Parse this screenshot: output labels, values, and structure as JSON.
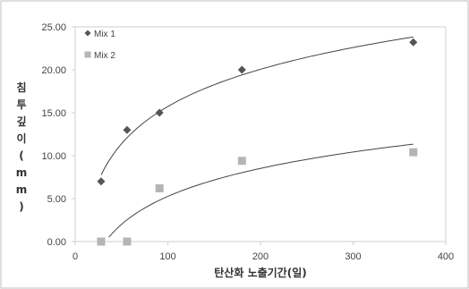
{
  "chart_data": {
    "type": "scatter",
    "title": "",
    "xlabel": "탄산화 노출기간(일)",
    "ylabel": "침투깊이(mm)",
    "ylabel_chars": [
      "침",
      "투",
      "깊",
      "이",
      "(",
      "m",
      "m",
      ")"
    ],
    "xlim": [
      0,
      400
    ],
    "ylim": [
      0,
      25
    ],
    "x_ticks": [
      "0",
      "100",
      "200",
      "300",
      "400"
    ],
    "y_ticks": [
      "0.00",
      "5.00",
      "10.00",
      "15.00",
      "20.00",
      "25.00"
    ],
    "grid": false,
    "legend_position": "top-left",
    "series": [
      {
        "name": "Mix 1",
        "marker": "diamond",
        "color": "#555555",
        "x": [
          28,
          56,
          91,
          180,
          365
        ],
        "y": [
          7.0,
          13.0,
          15.0,
          20.0,
          23.2
        ],
        "trendline": "logarithmic"
      },
      {
        "name": "Mix 2",
        "marker": "square",
        "color": "#b5b5b5",
        "x": [
          28,
          56,
          91,
          180,
          365
        ],
        "y": [
          0.0,
          0.0,
          6.2,
          9.4,
          10.4
        ],
        "trendline": "logarithmic"
      }
    ]
  }
}
